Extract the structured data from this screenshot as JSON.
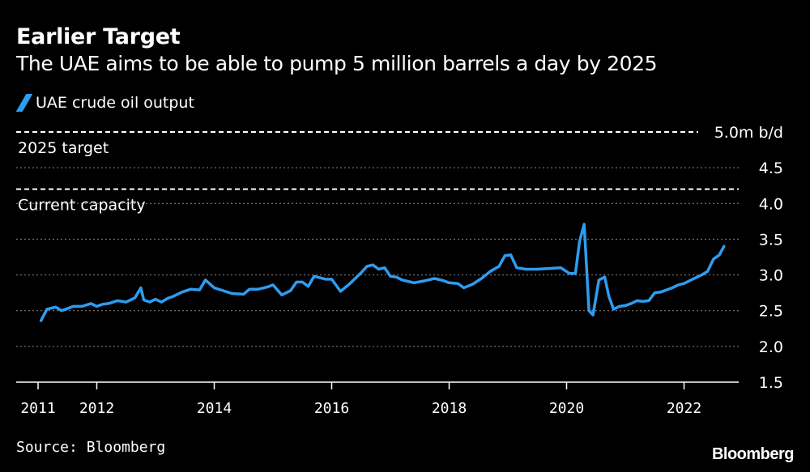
{
  "header": {
    "title": "Earlier Target",
    "subtitle": "The UAE aims to be able to pump 5 million barrels a day by 2025"
  },
  "legend": {
    "label": "UAE crude oil output"
  },
  "footer": {
    "source": "Source: Bloomberg",
    "brand": "Bloomberg"
  },
  "colors": {
    "series": "#2e9cf0",
    "background": "#000000",
    "text": "#ffffff",
    "grid": "#8a8a8a"
  },
  "chart_data": {
    "type": "line",
    "title": "Earlier Target",
    "subtitle": "The UAE aims to be able to pump 5 million barrels a day by 2025",
    "xlabel": "",
    "ylabel": "",
    "xlim": [
      2011,
      2023
    ],
    "ylim": [
      1.5,
      5.0
    ],
    "y_ticks": [
      {
        "value": 1.5,
        "label": "1.5"
      },
      {
        "value": 2.0,
        "label": "2.0"
      },
      {
        "value": 2.5,
        "label": "2.5"
      },
      {
        "value": 3.0,
        "label": "3.0"
      },
      {
        "value": 3.5,
        "label": "3.5"
      },
      {
        "value": 4.0,
        "label": "4.0"
      },
      {
        "value": 4.5,
        "label": "4.5"
      },
      {
        "value": 5.0,
        "label": "5.0m b/d"
      }
    ],
    "x_ticks": [
      {
        "value": 2011,
        "label": "2011"
      },
      {
        "value": 2012,
        "label": "2012"
      },
      {
        "value": 2014,
        "label": "2014"
      },
      {
        "value": 2016,
        "label": "2016"
      },
      {
        "value": 2018,
        "label": "2018"
      },
      {
        "value": 2020,
        "label": "2020"
      },
      {
        "value": 2022,
        "label": "2022"
      }
    ],
    "reference_lines": [
      {
        "value": 5.0,
        "label": "2025 target"
      },
      {
        "value": 4.2,
        "label": "Current capacity"
      }
    ],
    "series": [
      {
        "name": "UAE crude oil output",
        "x": [
          2011.05,
          2011.15,
          2011.3,
          2011.4,
          2011.5,
          2011.6,
          2011.75,
          2011.9,
          2012.0,
          2012.1,
          2012.2,
          2012.35,
          2012.5,
          2012.65,
          2012.75,
          2012.8,
          2012.9,
          2013.0,
          2013.1,
          2013.2,
          2013.3,
          2013.45,
          2013.6,
          2013.75,
          2013.85,
          2014.0,
          2014.15,
          2014.3,
          2014.5,
          2014.6,
          2014.75,
          2014.9,
          2015.0,
          2015.15,
          2015.3,
          2015.4,
          2015.5,
          2015.6,
          2015.7,
          2015.8,
          2015.9,
          2016.0,
          2016.15,
          2016.3,
          2016.4,
          2016.5,
          2016.6,
          2016.7,
          2016.8,
          2016.9,
          2017.0,
          2017.1,
          2017.2,
          2017.4,
          2017.6,
          2017.75,
          2017.9,
          2018.0,
          2018.15,
          2018.25,
          2018.4,
          2018.55,
          2018.7,
          2018.85,
          2018.95,
          2019.05,
          2019.15,
          2019.3,
          2019.5,
          2019.7,
          2019.9,
          2020.05,
          2020.15,
          2020.22,
          2020.3,
          2020.38,
          2020.45,
          2020.55,
          2020.65,
          2020.72,
          2020.8,
          2020.9,
          2021.0,
          2021.1,
          2021.2,
          2021.3,
          2021.4,
          2021.5,
          2021.6,
          2021.7,
          2021.8,
          2021.9,
          2022.0,
          2022.1,
          2022.2,
          2022.3,
          2022.4,
          2022.5,
          2022.6,
          2022.68
        ],
        "values": [
          2.36,
          2.52,
          2.55,
          2.5,
          2.53,
          2.56,
          2.56,
          2.6,
          2.56,
          2.59,
          2.6,
          2.64,
          2.62,
          2.68,
          2.82,
          2.65,
          2.62,
          2.66,
          2.62,
          2.67,
          2.7,
          2.76,
          2.8,
          2.79,
          2.93,
          2.82,
          2.78,
          2.74,
          2.73,
          2.8,
          2.8,
          2.83,
          2.86,
          2.72,
          2.78,
          2.9,
          2.9,
          2.84,
          2.98,
          2.96,
          2.94,
          2.94,
          2.77,
          2.87,
          2.95,
          3.03,
          3.12,
          3.14,
          3.08,
          3.1,
          2.98,
          2.97,
          2.93,
          2.89,
          2.92,
          2.95,
          2.92,
          2.89,
          2.88,
          2.82,
          2.87,
          2.95,
          3.05,
          3.12,
          3.27,
          3.28,
          3.1,
          3.08,
          3.08,
          3.09,
          3.1,
          3.02,
          3.02,
          3.47,
          3.71,
          2.5,
          2.44,
          2.93,
          2.97,
          2.7,
          2.52,
          2.56,
          2.57,
          2.6,
          2.64,
          2.63,
          2.64,
          2.75,
          2.76,
          2.79,
          2.82,
          2.86,
          2.88,
          2.92,
          2.96,
          3.0,
          3.05,
          3.22,
          3.28,
          3.4
        ]
      }
    ]
  }
}
